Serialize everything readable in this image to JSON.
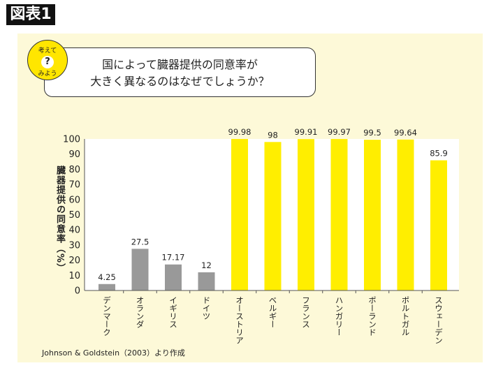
{
  "figure_label": "図表1",
  "badge": {
    "top": "考えて",
    "bottom": "みよう",
    "mark": "?"
  },
  "question": [
    "国によって臓器提供の同意率が",
    "大きく異なるのはなぜでしょうか？"
  ],
  "source": "Johnson & Goldstein（2003）より作成",
  "chart_data": {
    "type": "bar",
    "title": "",
    "xlabel": "",
    "ylabel": "臓器提供の同意率（%）",
    "ylim": [
      0,
      100
    ],
    "yticks": [
      0,
      10,
      20,
      30,
      40,
      50,
      60,
      70,
      80,
      90,
      100
    ],
    "grid": false,
    "categories": [
      "デンマーク",
      "オランダ",
      "イギリス",
      "ドイツ",
      "オーストリア",
      "ベルギー",
      "フランス",
      "ハンガリー",
      "ポーランド",
      "ポルトガル",
      "スウェーデン"
    ],
    "values": [
      4.25,
      27.5,
      17.17,
      12,
      99.98,
      98,
      99.91,
      99.97,
      99.5,
      99.64,
      85.9
    ],
    "labels": [
      "4.25",
      "27.5",
      "17.17",
      "12",
      "99.98",
      "98",
      "99.91",
      "99.97",
      "99.5",
      "99.64",
      "85.9"
    ],
    "colors": [
      "#999999",
      "#999999",
      "#999999",
      "#999999",
      "#ffee00",
      "#ffee00",
      "#ffee00",
      "#ffee00",
      "#ffee00",
      "#ffee00",
      "#ffee00"
    ]
  }
}
